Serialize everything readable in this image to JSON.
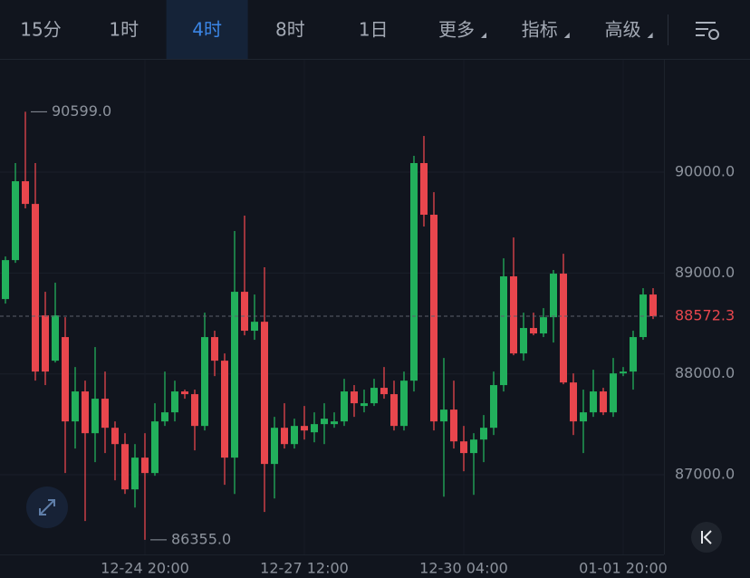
{
  "tabs": [
    {
      "label": "15分",
      "menu": false
    },
    {
      "label": "1时",
      "menu": false
    },
    {
      "label": "4时",
      "menu": false
    },
    {
      "label": "8时",
      "menu": false
    },
    {
      "label": "1日",
      "menu": false
    },
    {
      "label": "更多",
      "menu": true
    },
    {
      "label": "指标",
      "menu": true
    },
    {
      "label": "高级",
      "menu": true
    }
  ],
  "selected_tab": 2,
  "chart_data": {
    "type": "candlestick",
    "categories": [
      null,
      null,
      null,
      null,
      null,
      null,
      null,
      null,
      null,
      null,
      null,
      null,
      null,
      null,
      "12-24 20:00",
      null,
      null,
      null,
      null,
      null,
      null,
      null,
      null,
      null,
      null,
      null,
      null,
      null,
      null,
      null,
      "12-27 12:00",
      null,
      null,
      null,
      null,
      null,
      null,
      null,
      null,
      null,
      null,
      null,
      null,
      null,
      null,
      null,
      "12-30 04:00",
      null,
      null,
      null,
      null,
      null,
      null,
      null,
      null,
      null,
      null,
      null,
      null,
      null,
      null,
      null,
      "01-01 20:00",
      null,
      null,
      null
    ],
    "open": [
      88742,
      89128,
      89910,
      89685,
      88580,
      88131,
      88365,
      87529,
      87826,
      87412,
      87754,
      87466,
      87304,
      86855,
      87170,
      87017,
      87529,
      87619,
      87826,
      87799,
      87484,
      88365,
      88131,
      87170,
      88814,
      88428,
      88517,
      87107,
      87466,
      87304,
      87484,
      87421,
      87502,
      87502,
      87529,
      87826,
      87682,
      87709,
      87862,
      87799,
      87484,
      87933,
      90090,
      89578,
      87529,
      87646,
      87331,
      87215,
      87349,
      87466,
      87889,
      88967,
      88203,
      88455,
      88401,
      88562,
      88994,
      87915,
      87529,
      87619,
      87826,
      87619,
      88005,
      88023,
      88365,
      88787
    ],
    "high": [
      89164,
      90090,
      90599,
      90090,
      88814,
      88904,
      88562,
      88068,
      87933,
      88266,
      88023,
      87529,
      87412,
      87304,
      87412,
      87709,
      88023,
      87933,
      87844,
      87844,
      88607,
      88428,
      88203,
      89416,
      89569,
      88787,
      89057,
      87574,
      87709,
      87556,
      87682,
      87619,
      87709,
      87619,
      87951,
      87889,
      87844,
      87951,
      88068,
      87933,
      88023,
      90162,
      90359,
      89802,
      88158,
      87933,
      87484,
      87412,
      87592,
      88023,
      89146,
      89353,
      88607,
      88607,
      88652,
      89030,
      89191,
      88005,
      87844,
      88041,
      87862,
      88158,
      88068,
      88428,
      88850,
      88850
    ],
    "low": [
      88697,
      89101,
      89641,
      87933,
      87889,
      88113,
      87017,
      87260,
      86541,
      87125,
      87215,
      86945,
      86810,
      86675,
      86355,
      86990,
      87484,
      87529,
      87754,
      87242,
      87439,
      87978,
      86900,
      86810,
      88383,
      88338,
      86631,
      86765,
      87260,
      87260,
      87349,
      87322,
      87304,
      87466,
      87484,
      87574,
      87619,
      87682,
      87754,
      87439,
      87439,
      87826,
      89461,
      87439,
      86783,
      87260,
      87035,
      86801,
      87125,
      87394,
      87826,
      88185,
      88131,
      88383,
      88365,
      88311,
      87897,
      87394,
      87215,
      87574,
      87592,
      87574,
      87978,
      87844,
      88338,
      88544
    ],
    "close": [
      89128,
      89910,
      89685,
      88023,
      88023,
      88580,
      87529,
      87826,
      87412,
      87754,
      87466,
      87304,
      86855,
      87170,
      87017,
      87529,
      87619,
      87826,
      87799,
      87484,
      88365,
      88131,
      87170,
      88814,
      88428,
      88517,
      87107,
      87466,
      87304,
      87484,
      87439,
      87502,
      87556,
      87529,
      87826,
      87709,
      87709,
      87862,
      87799,
      87484,
      87933,
      90090,
      89578,
      87529,
      87646,
      87331,
      87215,
      87349,
      87466,
      87889,
      88967,
      88203,
      88455,
      88401,
      88562,
      88994,
      87915,
      87529,
      87619,
      87826,
      87619,
      88005,
      88023,
      88365,
      88787,
      88572.3
    ],
    "up_color": "#22b05c",
    "down_color": "#e8464d",
    "ylim": [
      86210,
      91123
    ],
    "yticks": [
      {
        "value": 87000,
        "label": "87000.0"
      },
      {
        "value": 88000,
        "label": "88000.0"
      },
      {
        "value": 89000,
        "label": "89000.0"
      },
      {
        "value": 90000,
        "label": "90000.0"
      }
    ],
    "grid": true,
    "last_price": 88572.3,
    "high_label": {
      "value": 90599,
      "label": "90599.0"
    },
    "low_label": {
      "value": 86355,
      "label": "86355.0"
    }
  }
}
